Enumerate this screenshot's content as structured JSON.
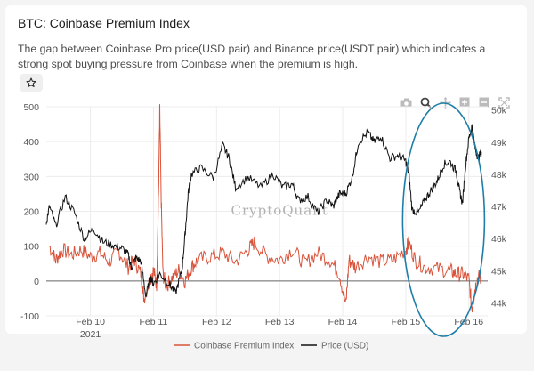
{
  "header": {
    "title": "BTC: Coinbase Premium Index",
    "description": "The gap between Coinbase Pro price(USD pair) and Binance price(USDT pair) which indicates a strong spot buying pressure from Coinbase when the premium is high."
  },
  "toolbar": {
    "icons": [
      "star-icon",
      "camera-icon",
      "zoom-icon",
      "pan-icon",
      "zoom-in-icon",
      "zoom-out-icon",
      "autoscale-icon"
    ]
  },
  "colors": {
    "premium": "#d9533a",
    "price": "#111111",
    "annotation": "#1e7ea8",
    "grid": "#ececec",
    "zero_line": "#666666"
  },
  "chart_data": {
    "type": "line",
    "title": "BTC: Coinbase Premium Index",
    "watermark": "CryptoQuant",
    "x_ticks": [
      "Feb 10",
      "Feb 11",
      "Feb 12",
      "Feb 13",
      "Feb 14",
      "Feb 15",
      "Feb 16"
    ],
    "x_year_label": "2021",
    "x_range_days": [
      9.3,
      16.3
    ],
    "y_left": {
      "label": "Coinbase Premium Index",
      "ticks": [
        500,
        400,
        300,
        200,
        100,
        0,
        -100
      ],
      "range": [
        -100,
        500
      ]
    },
    "y_right": {
      "label": "Price (USD)",
      "ticks": [
        "50k",
        "49k",
        "48k",
        "47k",
        "46k",
        "45k",
        "44k"
      ],
      "range": [
        43600,
        50100
      ]
    },
    "series": [
      {
        "name": "Coinbase Premium Index",
        "axis": "left",
        "x": [
          9.35,
          9.45,
          9.55,
          9.7,
          9.85,
          10.0,
          10.15,
          10.3,
          10.45,
          10.6,
          10.7,
          10.8,
          10.85,
          10.95,
          11.0,
          11.05,
          11.08,
          11.1,
          11.12,
          11.15,
          11.2,
          11.3,
          11.4,
          11.5,
          11.6,
          11.7,
          11.9,
          12.1,
          12.3,
          12.5,
          12.6,
          12.8,
          13.0,
          13.2,
          13.4,
          13.6,
          13.8,
          13.95,
          14.05,
          14.1,
          14.2,
          14.4,
          14.6,
          14.8,
          15.0,
          15.05,
          15.15,
          15.3,
          15.5,
          15.7,
          15.8,
          15.9,
          16.0,
          16.05,
          16.1,
          16.15,
          16.2
        ],
        "values": [
          100,
          60,
          90,
          75,
          90,
          70,
          80,
          55,
          85,
          40,
          60,
          20,
          -50,
          10,
          30,
          -10,
          250,
          490,
          250,
          20,
          -15,
          10,
          30,
          0,
          40,
          60,
          70,
          80,
          55,
          90,
          110,
          70,
          60,
          90,
          50,
          80,
          60,
          20,
          -70,
          60,
          40,
          70,
          55,
          60,
          90,
          110,
          60,
          40,
          35,
          30,
          20,
          20,
          5,
          -80,
          -20,
          15,
          5
        ]
      },
      {
        "name": "Price (USD)",
        "axis": "right",
        "x": [
          9.3,
          9.35,
          9.45,
          9.6,
          9.75,
          9.9,
          10.05,
          10.2,
          10.35,
          10.5,
          10.6,
          10.65,
          10.72,
          10.8,
          10.88,
          10.95,
          11.0,
          11.1,
          11.25,
          11.35,
          11.45,
          11.5,
          11.55,
          11.6,
          11.75,
          11.95,
          12.1,
          12.2,
          12.3,
          12.5,
          12.7,
          12.9,
          13.05,
          13.2,
          13.3,
          13.45,
          13.6,
          13.75,
          13.85,
          13.95,
          14.05,
          14.15,
          14.25,
          14.4,
          14.5,
          14.6,
          14.75,
          14.9,
          15.0,
          15.05,
          15.1,
          15.2,
          15.3,
          15.4,
          15.5,
          15.6,
          15.7,
          15.8,
          15.85,
          15.9,
          15.95,
          16.0,
          16.05,
          16.1,
          16.15,
          16.2
        ],
        "values": [
          46500,
          47000,
          46400,
          47300,
          46800,
          46000,
          46300,
          45900,
          45800,
          45700,
          45500,
          45100,
          45400,
          45300,
          44200,
          44800,
          44600,
          44900,
          44600,
          44300,
          45000,
          46100,
          47400,
          48000,
          48200,
          47900,
          48900,
          48500,
          47600,
          47900,
          47600,
          48000,
          47600,
          47700,
          47200,
          47300,
          46800,
          47200,
          47000,
          47400,
          47400,
          47900,
          49000,
          49300,
          49000,
          49200,
          48500,
          48600,
          48400,
          48000,
          46900,
          46800,
          47200,
          47500,
          47800,
          48300,
          48400,
          48100,
          47500,
          47100,
          48300,
          49100,
          49500,
          48800,
          48500,
          48700
        ]
      }
    ],
    "legend": [
      "Coinbase Premium Index",
      "Price (USD)"
    ],
    "annotation": "ellipse around Feb 15–Feb 16 region"
  }
}
